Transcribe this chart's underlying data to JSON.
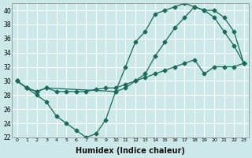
{
  "xlabel": "Humidex (Indice chaleur)",
  "bg_color": "#cce8e8",
  "line_color": "#1a6b5a",
  "grid_color": "#ffffff",
  "xlim": [
    -0.5,
    23.5
  ],
  "ylim": [
    22,
    41
  ],
  "xticks": [
    0,
    1,
    2,
    3,
    4,
    5,
    6,
    7,
    8,
    9,
    10,
    11,
    12,
    13,
    14,
    15,
    16,
    17,
    18,
    19,
    20,
    21,
    22,
    23
  ],
  "yticks": [
    22,
    24,
    26,
    28,
    30,
    32,
    34,
    36,
    38,
    40
  ],
  "series1_x": [
    0,
    1,
    2,
    3,
    4,
    5,
    6,
    7,
    8,
    9,
    10,
    11,
    12,
    13,
    14,
    15,
    16,
    17,
    18,
    19,
    20,
    21,
    22,
    23
  ],
  "series1_y": [
    30,
    29,
    28,
    27,
    25,
    24,
    23,
    22,
    22.5,
    24.5,
    28.5,
    32,
    35.5,
    37,
    39.5,
    40,
    40.5,
    41,
    40.5,
    40,
    39,
    37,
    35,
    32.5
  ],
  "series2_x": [
    0,
    1,
    2,
    3,
    10,
    11,
    12,
    13,
    14,
    15,
    16,
    17,
    18,
    19,
    20,
    21,
    22,
    23
  ],
  "series2_y": [
    30,
    29,
    28.5,
    29,
    28.5,
    29,
    30,
    31,
    33.5,
    35.5,
    37.5,
    39,
    40.5,
    40,
    40,
    39,
    37,
    32.5
  ],
  "series3_x": [
    0,
    1,
    2,
    3,
    4,
    5,
    6,
    7,
    8,
    9,
    10,
    11,
    12,
    13,
    14,
    15,
    16,
    17,
    18,
    19,
    20,
    21,
    22,
    23
  ],
  "series3_y": [
    30,
    29,
    28.5,
    29,
    28.5,
    28.5,
    28.5,
    28.5,
    28.8,
    29,
    29,
    29.5,
    30,
    30.5,
    31,
    31.5,
    32,
    32.5,
    33,
    31,
    32,
    32,
    32,
    32.5
  ]
}
